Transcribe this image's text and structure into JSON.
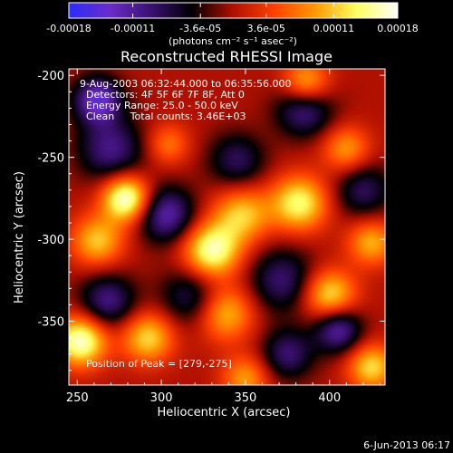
{
  "chart_data": {
    "type": "heatmap",
    "title": "Reconstructed RHESSI Image",
    "xlabel": "Heliocentric X (arcsec)",
    "ylabel": "Heliocentric Y (arcsec)",
    "xlim": [
      245,
      433
    ],
    "ylim": [
      -389,
      -196
    ],
    "x_ticks": [
      250,
      300,
      350,
      400
    ],
    "y_ticks": [
      -200,
      -250,
      -300,
      -350
    ],
    "colorbar": {
      "range": [
        -0.00018,
        0.00018
      ],
      "tick_values": [
        -0.00018,
        -0.00011,
        -3.6e-05,
        3.6e-05,
        0.00011,
        0.00018
      ],
      "tick_labels": [
        "-0.00018",
        "-0.00011",
        "-3.6e-05",
        "3.6e-05",
        "0.00011",
        "0.00018"
      ],
      "unit_label": "(photons cm⁻² s⁻¹ asec⁻²)",
      "colormap": [
        "#2b2bff",
        "#6a2cc8",
        "#3a1070",
        "#000000",
        "#b01000",
        "#ff4000",
        "#ff9a00",
        "#ffff60",
        "#ffffff"
      ]
    },
    "annotations": [
      "9-Aug-2003 06:32:44.000 to 06:35:56.000",
      "Detectors: 4F 5F 6F 7F 8F, Att 0",
      "Energy Range: 25.0 - 50.0 keV",
      "Clean     Total counts: 3.46E+03"
    ],
    "peak_label": "Position of Peak = [279,-275]",
    "peak": [
      279,
      -275
    ],
    "sources": [
      {
        "x": 279,
        "y": -275,
        "v": 0.00018,
        "s": 10
      },
      {
        "x": 262,
        "y": -301,
        "v": 0.00011,
        "s": 11
      },
      {
        "x": 330,
        "y": -307,
        "v": 0.00016,
        "s": 12
      },
      {
        "x": 348,
        "y": -285,
        "v": 0.00011,
        "s": 12
      },
      {
        "x": 382,
        "y": -278,
        "v": 0.00014,
        "s": 12
      },
      {
        "x": 252,
        "y": -362,
        "v": 0.00017,
        "s": 11
      },
      {
        "x": 292,
        "y": -360,
        "v": 0.00012,
        "s": 11
      },
      {
        "x": 338,
        "y": -345,
        "v": 0.00011,
        "s": 12
      },
      {
        "x": 400,
        "y": -334,
        "v": 0.00013,
        "s": 11
      },
      {
        "x": 425,
        "y": -302,
        "v": 0.0001,
        "s": 10
      },
      {
        "x": 386,
        "y": -205,
        "v": 0.00012,
        "s": 10
      },
      {
        "x": 410,
        "y": -245,
        "v": 9e-05,
        "s": 10
      },
      {
        "x": 304,
        "y": -242,
        "v": 7e-05,
        "s": 9
      },
      {
        "x": 425,
        "y": -378,
        "v": 0.00012,
        "s": 10
      },
      {
        "x": 350,
        "y": -385,
        "v": 9e-05,
        "s": 10
      },
      {
        "x": 270,
        "y": -245,
        "v": -0.0001,
        "s": 14
      },
      {
        "x": 385,
        "y": -220,
        "v": -0.00011,
        "s": 12
      },
      {
        "x": 262,
        "y": -215,
        "v": -0.00014,
        "s": 10
      },
      {
        "x": 303,
        "y": -285,
        "v": -0.00012,
        "s": 12
      },
      {
        "x": 345,
        "y": -252,
        "v": -8e-05,
        "s": 12
      },
      {
        "x": 372,
        "y": -325,
        "v": -9e-05,
        "s": 14
      },
      {
        "x": 405,
        "y": -355,
        "v": -0.00012,
        "s": 10
      },
      {
        "x": 268,
        "y": -338,
        "v": -0.0001,
        "s": 12
      },
      {
        "x": 318,
        "y": -335,
        "v": -8e-05,
        "s": 13
      },
      {
        "x": 420,
        "y": -270,
        "v": -8e-05,
        "s": 12
      },
      {
        "x": 375,
        "y": -370,
        "v": -9e-05,
        "s": 11
      }
    ]
  },
  "footer": {
    "date": "6-Jun-2013 06:17"
  }
}
